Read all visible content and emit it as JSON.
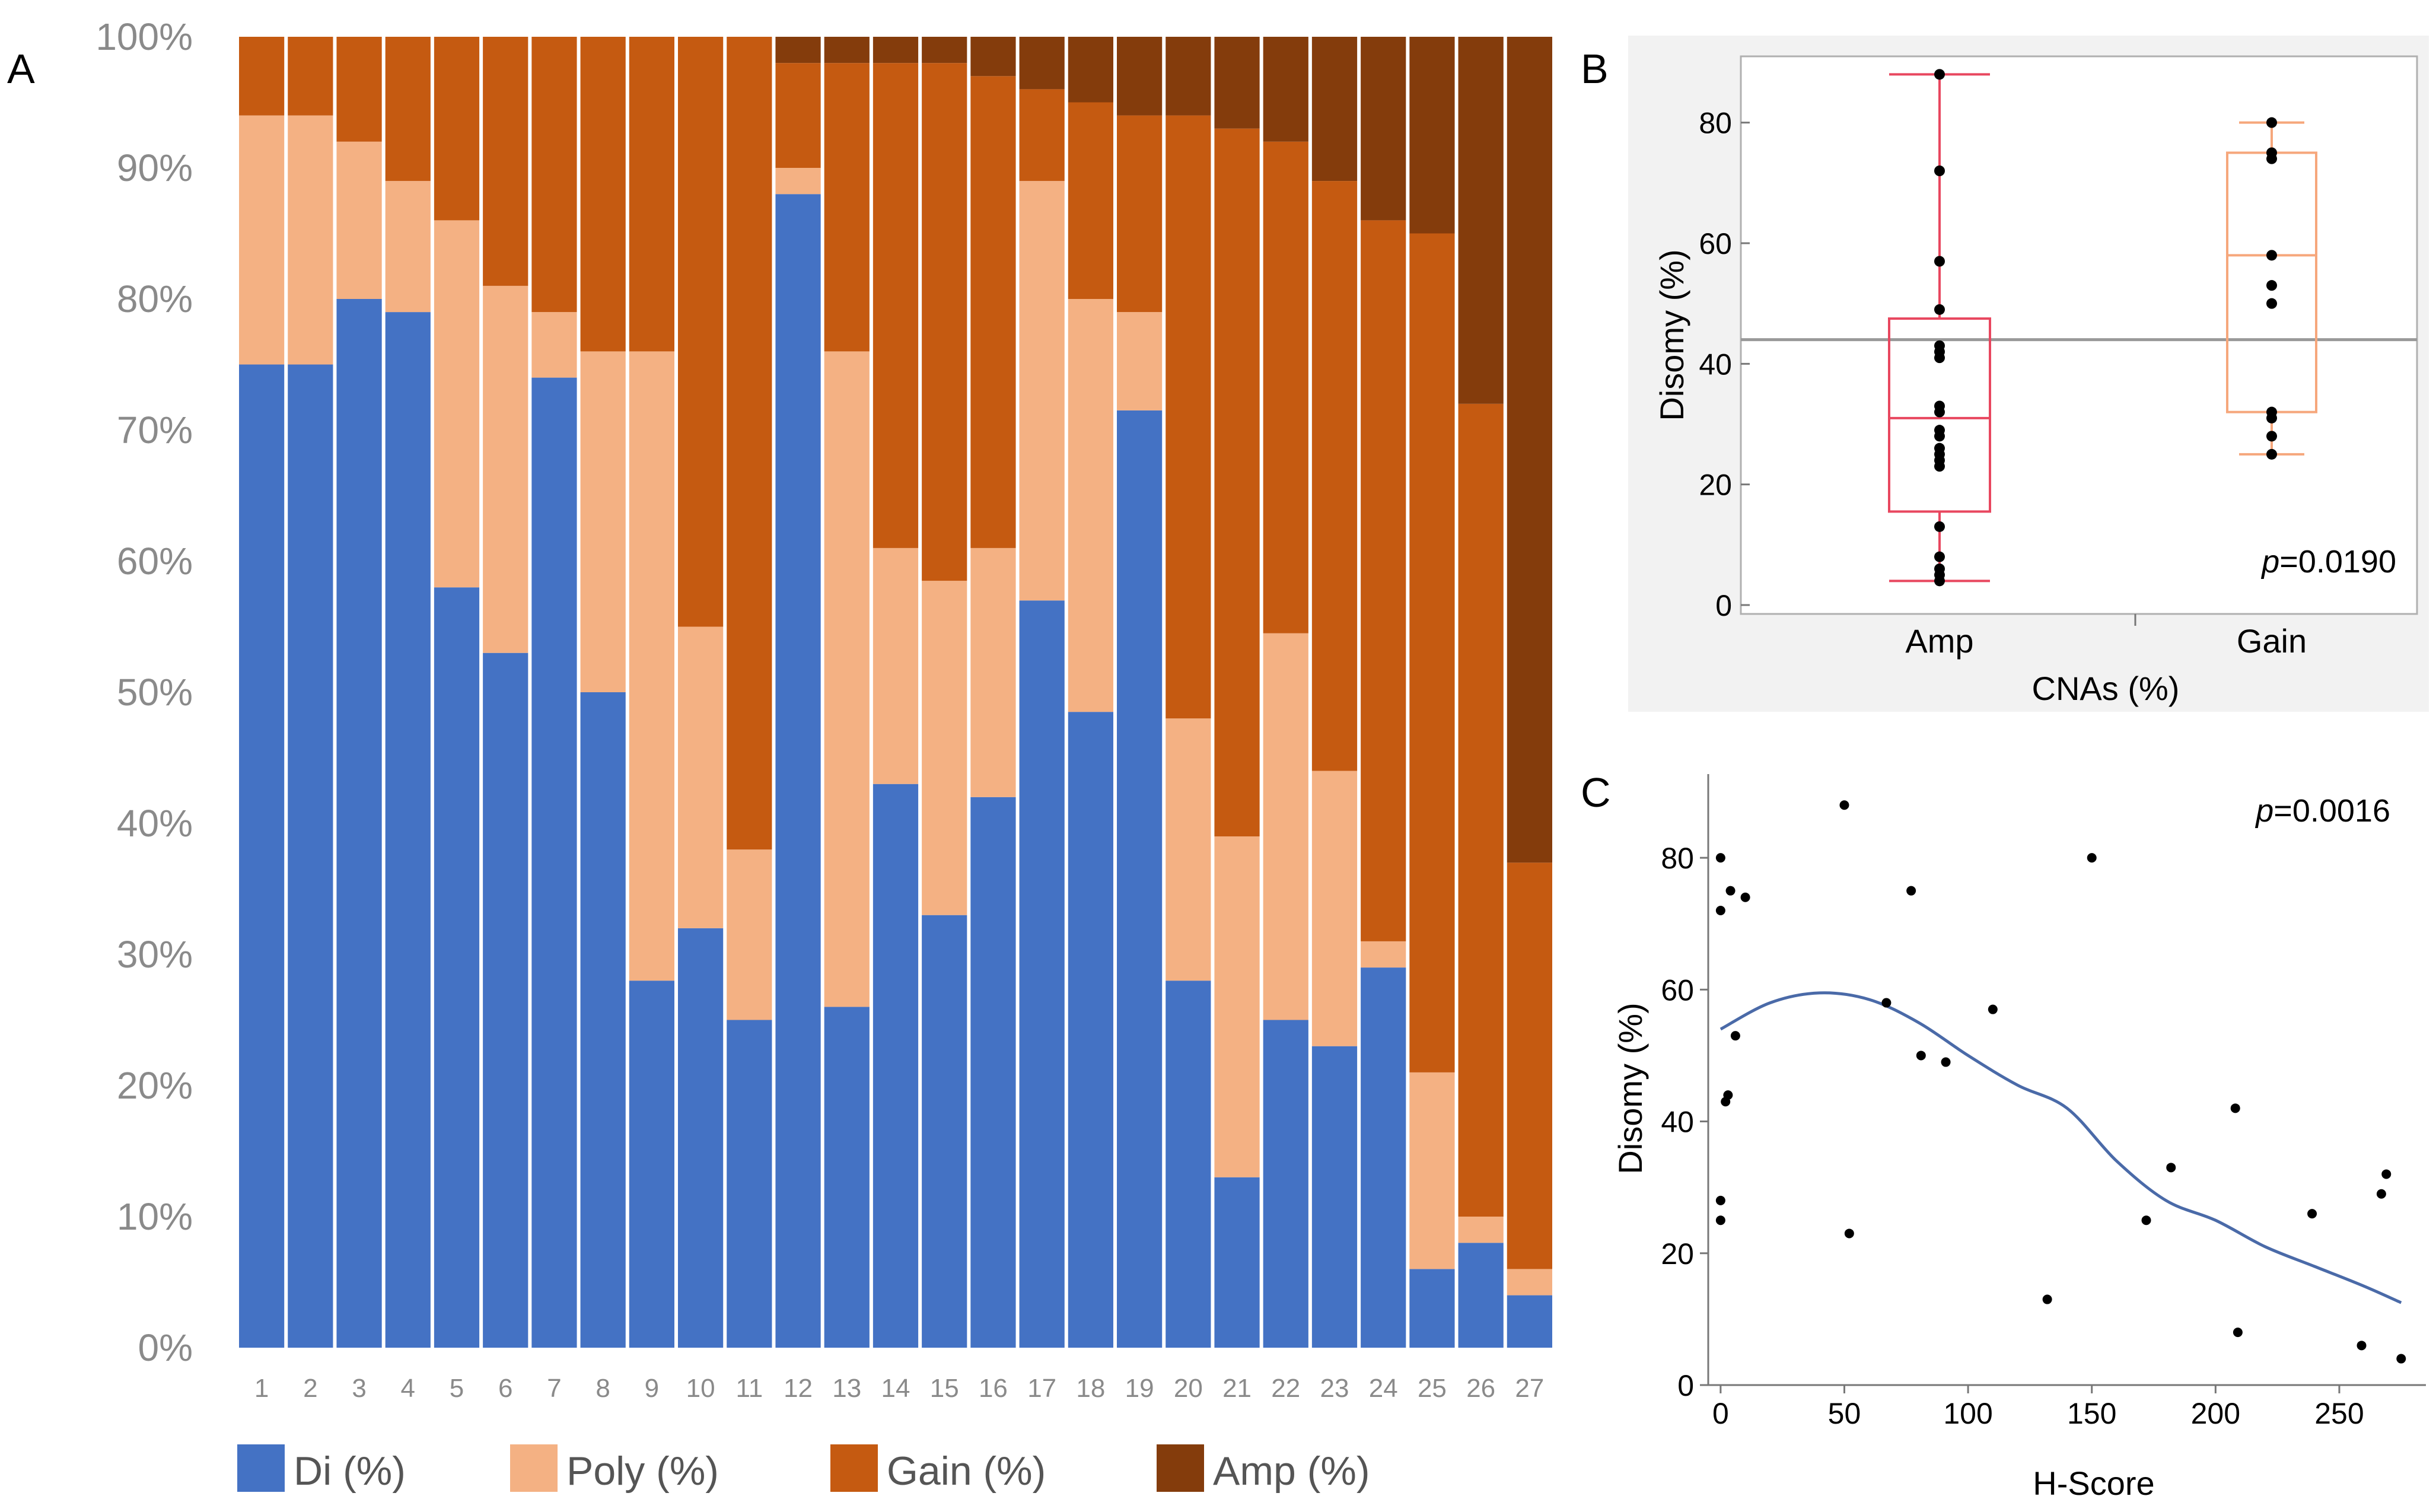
{
  "panel_labels": {
    "a": "A",
    "b": "B",
    "c": "C"
  },
  "chart_data": [
    {
      "type": "bar",
      "stacked": true,
      "normalized": true,
      "panel": "A",
      "categories": [
        "1",
        "2",
        "3",
        "4",
        "5",
        "6",
        "7",
        "8",
        "9",
        "10",
        "11",
        "12",
        "13",
        "14",
        "15",
        "16",
        "17",
        "18",
        "19",
        "20",
        "21",
        "22",
        "23",
        "24",
        "25",
        "26",
        "27"
      ],
      "series": [
        {
          "name": "Di (%)",
          "color": "#4472c4",
          "values": [
            75,
            75,
            80,
            79,
            58,
            53,
            74,
            50,
            28,
            32,
            25,
            88,
            26,
            43,
            33,
            42,
            57,
            48.5,
            71.5,
            28,
            13,
            25,
            23,
            29,
            6,
            8,
            4
          ]
        },
        {
          "name": "Poly (%)",
          "color": "#f4b183",
          "values": [
            19,
            19,
            12,
            10,
            28,
            28,
            5,
            26,
            48,
            23,
            13,
            2,
            50,
            18,
            25.5,
            19,
            32,
            31.5,
            7.5,
            20,
            26,
            29.5,
            21,
            2,
            15,
            2,
            2
          ]
        },
        {
          "name": "Gain (%)",
          "color": "#c55a11",
          "values": [
            6,
            6,
            8,
            11,
            14,
            19,
            21,
            24,
            24,
            45,
            62,
            8,
            22,
            37,
            39.5,
            36,
            7,
            15,
            15,
            46,
            54,
            37.5,
            45,
            55,
            64,
            62,
            31
          ]
        },
        {
          "name": "Amp (%)",
          "color": "#843c0c",
          "values": [
            0,
            0,
            0,
            0,
            0,
            0,
            0,
            0,
            0,
            0,
            0,
            2,
            2,
            2,
            2,
            3,
            4,
            5,
            6,
            6,
            7,
            8,
            11,
            14,
            15,
            28,
            63
          ]
        }
      ],
      "yticks": [
        "0%",
        "10%",
        "20%",
        "30%",
        "40%",
        "50%",
        "60%",
        "70%",
        "80%",
        "90%",
        "100%"
      ],
      "ylim": [
        0,
        100
      ],
      "legend": [
        "Di (%)",
        "Poly (%)",
        "Gain (%)",
        "Amp (%)"
      ],
      "legend_position": "bottom"
    },
    {
      "type": "box",
      "panel": "B",
      "xlabel": "CNAs (%)",
      "ylabel": "Disomy (%)",
      "ylim": [
        0,
        90
      ],
      "yticks": [
        "0",
        "20",
        "40",
        "60",
        "80"
      ],
      "grand_mean": 44,
      "annotation": "p=0.0190",
      "annotation_p": "p",
      "annotation_val": "=0.0190",
      "groups": [
        {
          "name": "Amp",
          "color": "#e8475f",
          "min": 4,
          "q1": 15.5,
          "median": 31,
          "q3": 47.5,
          "max": 88,
          "points": [
            4,
            5,
            6,
            8,
            13,
            23,
            24,
            25,
            26,
            28,
            29,
            32,
            33,
            41,
            42,
            43,
            49,
            57,
            72,
            88
          ]
        },
        {
          "name": "Gain",
          "color": "#f6a77c",
          "min": 25,
          "q1": 32,
          "median": 58,
          "q3": 75,
          "max": 80,
          "points": [
            25,
            28,
            31,
            32,
            50,
            53,
            58,
            74,
            75,
            80
          ]
        }
      ]
    },
    {
      "type": "scatter",
      "panel": "C",
      "xlabel": "H-Score",
      "ylabel": "Disomy (%)",
      "xlim": [
        -5,
        285
      ],
      "ylim": [
        0,
        90
      ],
      "xticks": [
        "0",
        "50",
        "100",
        "150",
        "200",
        "250"
      ],
      "yticks": [
        "0",
        "20",
        "40",
        "60",
        "80"
      ],
      "annotation": "p=0.0016",
      "annotation_p": "p",
      "annotation_val": "=0.0016",
      "points": [
        [
          0,
          80
        ],
        [
          0,
          72
        ],
        [
          0,
          28
        ],
        [
          0,
          25
        ],
        [
          2,
          43
        ],
        [
          3,
          44
        ],
        [
          4,
          75
        ],
        [
          6,
          53
        ],
        [
          10,
          74
        ],
        [
          50,
          88
        ],
        [
          52,
          23
        ],
        [
          67,
          58
        ],
        [
          77,
          75
        ],
        [
          81,
          50
        ],
        [
          91,
          49
        ],
        [
          110,
          57
        ],
        [
          132,
          13
        ],
        [
          150,
          80
        ],
        [
          172,
          25
        ],
        [
          182,
          33
        ],
        [
          208,
          42
        ],
        [
          209,
          8
        ],
        [
          239,
          26
        ],
        [
          259,
          6
        ],
        [
          267,
          29
        ],
        [
          269,
          32
        ],
        [
          275,
          4
        ]
      ],
      "smooth_curve": [
        [
          0,
          54
        ],
        [
          20,
          58
        ],
        [
          40,
          59.5
        ],
        [
          60,
          58.5
        ],
        [
          80,
          55
        ],
        [
          100,
          50
        ],
        [
          120,
          45.5
        ],
        [
          140,
          42
        ],
        [
          160,
          34
        ],
        [
          180,
          28
        ],
        [
          200,
          25
        ],
        [
          220,
          21
        ],
        [
          240,
          18
        ],
        [
          260,
          15
        ],
        [
          275,
          12.5
        ]
      ]
    }
  ]
}
